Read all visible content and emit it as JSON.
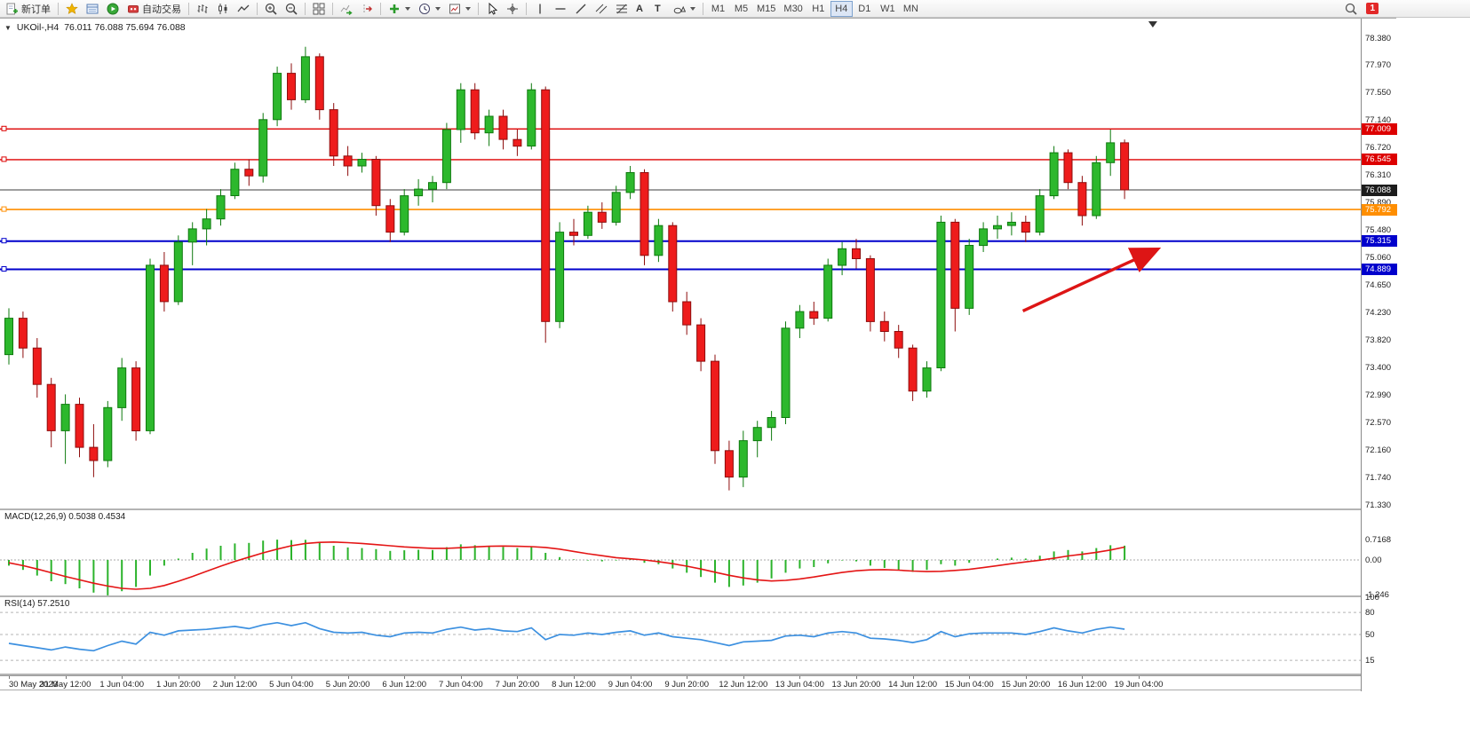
{
  "window": {
    "collapse_icon": "▼",
    "symbol_period": "UKOil-,H4",
    "ohlc": "76.011 76.088 75.694 76.088"
  },
  "toolbar": {
    "new_order_label": "新订单",
    "autotrading_label": "自动交易",
    "text_tool_label": "A",
    "label_tool_label": "T",
    "timeframes": [
      "M1",
      "M5",
      "M15",
      "M30",
      "H1",
      "H4",
      "D1",
      "W1",
      "MN"
    ],
    "active_timeframe": "H4",
    "notification_badge": "1"
  },
  "chart_data": [
    {
      "type": "candlestick",
      "title": "UKOil-,H4",
      "x_step": 4,
      "x_labels": [
        "30 May 2023",
        "31 May 12:00",
        "1 Jun 04:00",
        "1 Jun 20:00",
        "2 Jun 12:00",
        "5 Jun 04:00",
        "5 Jun 20:00",
        "6 Jun 12:00",
        "7 Jun 04:00",
        "7 Jun 20:00",
        "8 Jun 12:00",
        "9 Jun 04:00",
        "9 Jun 20:00",
        "12 Jun 12:00",
        "13 Jun 04:00",
        "13 Jun 20:00",
        "14 Jun 12:00",
        "15 Jun 04:00",
        "15 Jun 20:00",
        "16 Jun 12:00",
        "19 Jun 04:00"
      ],
      "ylim": [
        71.33,
        78.675
      ],
      "y_ticks": [
        "78.380",
        "77.970",
        "77.550",
        "77.140",
        "76.720",
        "76.310",
        "75.890",
        "75.480",
        "75.060",
        "74.650",
        "74.230",
        "73.820",
        "73.400",
        "72.990",
        "72.570",
        "72.160",
        "71.740",
        "71.330"
      ],
      "colors": {
        "up": "#2db82d",
        "up_border": "#0e7a0e",
        "down": "#ee1c1c",
        "down_border": "#8e0d0d"
      },
      "shift_marker_candle": 81,
      "candles": [
        [
          73.6,
          74.3,
          73.45,
          74.15
        ],
        [
          74.15,
          74.25,
          73.55,
          73.7
        ],
        [
          73.7,
          73.85,
          72.95,
          73.15
        ],
        [
          73.15,
          73.25,
          72.2,
          72.45
        ],
        [
          72.45,
          73.0,
          71.95,
          72.85
        ],
        [
          72.85,
          72.95,
          72.05,
          72.2
        ],
        [
          72.2,
          72.55,
          71.75,
          72.0
        ],
        [
          72.0,
          72.9,
          71.9,
          72.8
        ],
        [
          72.8,
          73.55,
          72.6,
          73.4
        ],
        [
          73.4,
          73.5,
          72.3,
          72.45
        ],
        [
          72.45,
          75.05,
          72.4,
          74.95
        ],
        [
          74.95,
          75.15,
          74.25,
          74.4
        ],
        [
          74.4,
          75.4,
          74.35,
          75.3
        ],
        [
          75.3,
          75.6,
          74.95,
          75.5
        ],
        [
          75.5,
          75.8,
          75.25,
          75.65
        ],
        [
          75.65,
          76.1,
          75.55,
          76.0
        ],
        [
          76.0,
          76.5,
          75.95,
          76.4
        ],
        [
          76.4,
          76.55,
          76.15,
          76.3
        ],
        [
          76.3,
          77.25,
          76.2,
          77.15
        ],
        [
          77.15,
          77.95,
          77.05,
          77.85
        ],
        [
          77.85,
          78.0,
          77.3,
          77.45
        ],
        [
          77.45,
          78.25,
          77.4,
          78.1
        ],
        [
          78.1,
          78.15,
          77.15,
          77.3
        ],
        [
          77.3,
          77.4,
          76.45,
          76.6
        ],
        [
          76.6,
          76.75,
          76.3,
          76.45
        ],
        [
          76.45,
          76.65,
          76.35,
          76.55
        ],
        [
          76.55,
          76.6,
          75.7,
          75.85
        ],
        [
          75.85,
          75.95,
          75.3,
          75.45
        ],
        [
          75.45,
          76.1,
          75.4,
          76.0
        ],
        [
          76.0,
          76.25,
          75.85,
          76.1
        ],
        [
          76.1,
          76.3,
          75.9,
          76.2
        ],
        [
          76.2,
          77.1,
          76.1,
          77.0
        ],
        [
          77.0,
          77.7,
          76.8,
          77.6
        ],
        [
          77.6,
          77.7,
          76.85,
          76.95
        ],
        [
          76.95,
          77.3,
          76.75,
          77.2
        ],
        [
          77.2,
          77.3,
          76.7,
          76.85
        ],
        [
          76.85,
          77.0,
          76.6,
          76.75
        ],
        [
          76.75,
          77.7,
          76.7,
          77.6
        ],
        [
          77.6,
          77.65,
          73.78,
          74.1
        ],
        [
          74.1,
          75.6,
          74.0,
          75.45
        ],
        [
          75.45,
          75.65,
          75.25,
          75.4
        ],
        [
          75.4,
          75.85,
          75.35,
          75.75
        ],
        [
          75.75,
          75.9,
          75.5,
          75.6
        ],
        [
          75.6,
          76.15,
          75.55,
          76.05
        ],
        [
          76.05,
          76.45,
          75.95,
          76.35
        ],
        [
          76.35,
          76.4,
          74.95,
          75.1
        ],
        [
          75.1,
          75.65,
          75.0,
          75.55
        ],
        [
          75.55,
          75.6,
          74.25,
          74.4
        ],
        [
          74.4,
          74.55,
          73.9,
          74.05
        ],
        [
          74.05,
          74.15,
          73.35,
          73.5
        ],
        [
          73.5,
          73.6,
          71.95,
          72.15
        ],
        [
          72.15,
          72.3,
          71.55,
          71.75
        ],
        [
          71.75,
          72.45,
          71.6,
          72.3
        ],
        [
          72.3,
          72.6,
          72.05,
          72.5
        ],
        [
          72.5,
          72.75,
          72.3,
          72.65
        ],
        [
          72.65,
          74.1,
          72.55,
          74.0
        ],
        [
          74.0,
          74.35,
          73.85,
          74.25
        ],
        [
          74.25,
          74.4,
          74.05,
          74.15
        ],
        [
          74.15,
          75.05,
          74.1,
          74.95
        ],
        [
          74.95,
          75.3,
          74.8,
          75.2
        ],
        [
          75.2,
          75.35,
          74.9,
          75.05
        ],
        [
          75.05,
          75.1,
          73.95,
          74.1
        ],
        [
          74.1,
          74.25,
          73.8,
          73.95
        ],
        [
          73.95,
          74.05,
          73.55,
          73.7
        ],
        [
          73.7,
          73.75,
          72.9,
          73.05
        ],
        [
          73.05,
          73.5,
          72.95,
          73.4
        ],
        [
          73.4,
          75.7,
          73.35,
          75.6
        ],
        [
          75.6,
          75.65,
          73.95,
          74.3
        ],
        [
          74.3,
          75.35,
          74.2,
          75.25
        ],
        [
          75.25,
          75.6,
          75.15,
          75.5
        ],
        [
          75.5,
          75.7,
          75.35,
          75.55
        ],
        [
          75.55,
          75.75,
          75.4,
          75.6
        ],
        [
          75.6,
          75.7,
          75.3,
          75.45
        ],
        [
          75.45,
          76.1,
          75.4,
          76.0
        ],
        [
          76.0,
          76.75,
          75.95,
          76.65
        ],
        [
          76.65,
          76.7,
          76.1,
          76.2
        ],
        [
          76.2,
          76.3,
          75.55,
          75.7
        ],
        [
          75.7,
          76.6,
          75.65,
          76.5
        ],
        [
          76.5,
          77.0,
          76.3,
          76.8
        ],
        [
          76.8,
          76.85,
          75.95,
          76.088
        ]
      ],
      "horizontal_lines": [
        {
          "price": 77.009,
          "label": "77.009",
          "color": "#dd0000",
          "tag_bg": "#dd0000",
          "width": 1.4
        },
        {
          "price": 76.545,
          "label": "76.545",
          "color": "#dd0000",
          "tag_bg": "#dd0000",
          "width": 1.4
        },
        {
          "price": 76.088,
          "label": "76.088",
          "color": "#3c3c3c",
          "tag_bg": "#1c1c1c",
          "width": 1.1,
          "is_current": true
        },
        {
          "price": 75.792,
          "label": "75.792",
          "color": "#ff8e00",
          "tag_bg": "#ff8e00",
          "width": 1.6
        },
        {
          "price": 75.315,
          "label": "75.315",
          "color": "#0000cc",
          "tag_bg": "#0000cc",
          "width": 2
        },
        {
          "price": 74.889,
          "label": "74.889",
          "color": "#0000cc",
          "tag_bg": "#0000cc",
          "width": 2
        }
      ],
      "annotation_arrow": {
        "from": {
          "candle": 71.8,
          "price": 74.26
        },
        "to": {
          "candle": 81.0,
          "price": 75.16
        },
        "color": "#dd1515"
      }
    },
    {
      "type": "bar",
      "name": "MACD(12,26,9)",
      "label": "MACD(12,26,9) 0.5038 0.4534",
      "ylim": [
        -1.25,
        1.75
      ],
      "y_ticks": [
        {
          "value": 0.7168,
          "label": "0.7168"
        },
        {
          "value": 0,
          "label": "0.00"
        },
        {
          "value": -1.246,
          "label": "-1.246"
        }
      ],
      "colors": {
        "histogram": "#2bb32b",
        "signal": "#e41515"
      },
      "values": [
        -0.2,
        -0.35,
        -0.55,
        -0.75,
        -0.85,
        -1.0,
        -1.15,
        -1.246,
        -1.1,
        -0.95,
        -0.55,
        -0.2,
        0.05,
        0.25,
        0.4,
        0.5,
        0.58,
        0.6,
        0.68,
        0.7168,
        0.7,
        0.71,
        0.62,
        0.5,
        0.44,
        0.42,
        0.38,
        0.32,
        0.34,
        0.36,
        0.35,
        0.45,
        0.55,
        0.52,
        0.5,
        0.46,
        0.42,
        0.48,
        0.25,
        0.1,
        0.02,
        -0.02,
        -0.05,
        -0.02,
        0.02,
        -0.1,
        -0.15,
        -0.3,
        -0.45,
        -0.6,
        -0.8,
        -0.95,
        -0.9,
        -0.8,
        -0.65,
        -0.45,
        -0.3,
        -0.25,
        -0.12,
        -0.02,
        -0.05,
        -0.2,
        -0.28,
        -0.35,
        -0.42,
        -0.35,
        -0.15,
        -0.2,
        -0.1,
        0.0,
        0.05,
        0.08,
        0.05,
        0.15,
        0.3,
        0.35,
        0.3,
        0.42,
        0.52,
        0.5038
      ],
      "signal": [
        -0.1,
        -0.2,
        -0.32,
        -0.45,
        -0.58,
        -0.7,
        -0.82,
        -0.92,
        -1.0,
        -1.03,
        -1.0,
        -0.9,
        -0.75,
        -0.58,
        -0.4,
        -0.22,
        -0.05,
        0.1,
        0.25,
        0.38,
        0.5,
        0.58,
        0.62,
        0.63,
        0.61,
        0.58,
        0.54,
        0.5,
        0.46,
        0.43,
        0.41,
        0.41,
        0.43,
        0.46,
        0.48,
        0.49,
        0.48,
        0.47,
        0.44,
        0.38,
        0.3,
        0.22,
        0.15,
        0.08,
        0.04,
        0.0,
        -0.06,
        -0.13,
        -0.22,
        -0.32,
        -0.43,
        -0.54,
        -0.63,
        -0.7,
        -0.74,
        -0.72,
        -0.67,
        -0.6,
        -0.52,
        -0.44,
        -0.38,
        -0.35,
        -0.34,
        -0.36,
        -0.39,
        -0.41,
        -0.4,
        -0.37,
        -0.33,
        -0.27,
        -0.2,
        -0.13,
        -0.07,
        -0.01,
        0.06,
        0.14,
        0.2,
        0.27,
        0.35,
        0.4534
      ]
    },
    {
      "type": "line",
      "name": "RSI(14)",
      "label": "RSI(14) 57.2510",
      "ylim": [
        -3.0,
        100.6
      ],
      "levels": [
        80,
        50,
        15
      ],
      "y_ticks": [
        {
          "value": 100,
          "label": "100"
        },
        {
          "value": 80,
          "label": "80"
        },
        {
          "value": 50,
          "label": "50"
        },
        {
          "value": 15,
          "label": "15"
        }
      ],
      "color": "#3c90e0",
      "values": [
        38,
        35,
        32,
        29,
        33,
        30,
        28,
        35,
        41,
        37,
        53,
        49,
        55,
        56,
        57,
        59,
        61,
        58,
        63,
        66,
        62,
        66,
        58,
        53,
        52,
        53,
        49,
        47,
        52,
        53,
        52,
        57,
        60,
        56,
        58,
        55,
        54,
        59,
        43,
        50,
        49,
        52,
        50,
        53,
        55,
        49,
        52,
        47,
        45,
        43,
        39,
        35,
        40,
        41,
        42,
        48,
        49,
        47,
        52,
        54,
        52,
        45,
        44,
        42,
        39,
        43,
        54,
        47,
        51,
        52,
        52,
        52,
        50,
        54,
        59,
        55,
        52,
        57,
        60,
        57.25
      ]
    }
  ]
}
